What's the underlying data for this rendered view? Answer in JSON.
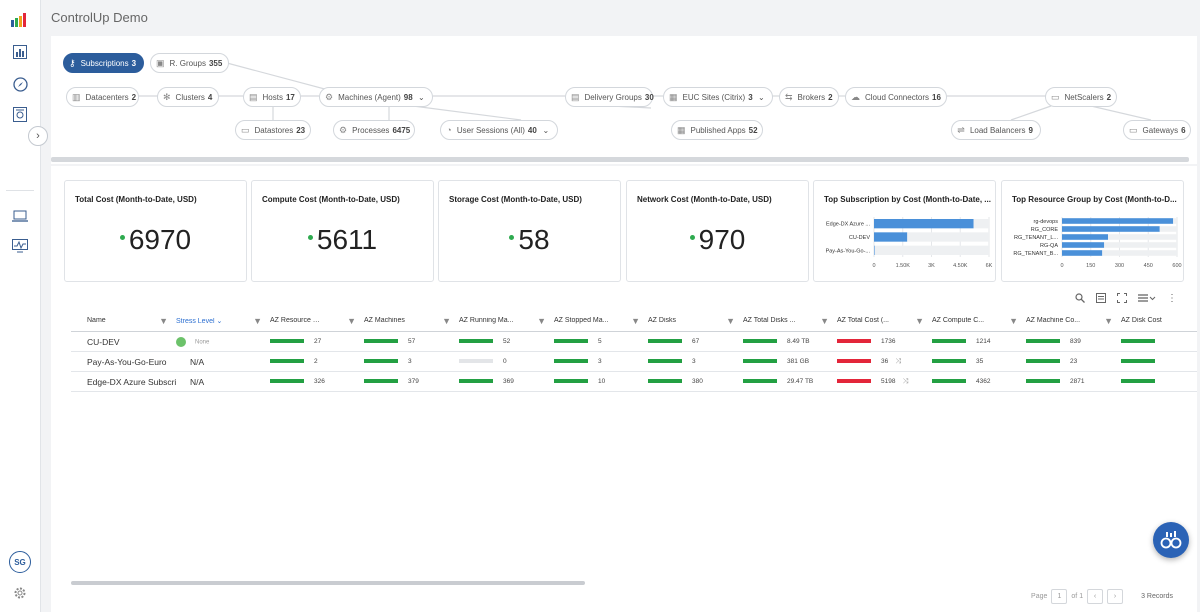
{
  "app": {
    "title": "ControlUp Demo",
    "avatar_initials": "SG"
  },
  "topology": {
    "nodes": [
      {
        "label": "Subscriptions",
        "count": "3",
        "icon": "key-icon",
        "active": true
      },
      {
        "label": "R. Groups",
        "count": "355",
        "icon": "cube-icon"
      },
      {
        "label": "Datacenters",
        "count": "2",
        "icon": "building-icon"
      },
      {
        "label": "Clusters",
        "count": "4",
        "icon": "cluster-icon"
      },
      {
        "label": "Hosts",
        "count": "17",
        "icon": "server-icon"
      },
      {
        "label": "Datastores",
        "count": "23",
        "icon": "datastore-icon"
      },
      {
        "label": "Machines (Agent)",
        "count": "98",
        "icon": "machine-icon"
      },
      {
        "label": "Processes",
        "count": "6475",
        "icon": "gears-icon"
      },
      {
        "label": "User Sessions (All)",
        "count": "40",
        "icon": "session-icon"
      },
      {
        "label": "Delivery Groups",
        "count": "30",
        "icon": "delivery-icon"
      },
      {
        "label": "EUC Sites (Citrix)",
        "count": "3",
        "icon": "site-icon"
      },
      {
        "label": "Published Apps",
        "count": "52",
        "icon": "apps-icon"
      },
      {
        "label": "Brokers",
        "count": "2",
        "icon": "broker-icon"
      },
      {
        "label": "Cloud Connectors",
        "count": "16",
        "icon": "cloud-icon"
      },
      {
        "label": "NetScalers",
        "count": "2",
        "icon": "netscaler-icon"
      },
      {
        "label": "Load Balancers",
        "count": "9",
        "icon": "balancer-icon"
      },
      {
        "label": "Gateways",
        "count": "6",
        "icon": "gateway-icon"
      }
    ]
  },
  "cards": [
    {
      "title": "Total Cost (Month-to-Date, USD)",
      "value": "6970"
    },
    {
      "title": "Compute Cost (Month-to-Date, USD)",
      "value": "5611"
    },
    {
      "title": "Storage Cost (Month-to-Date, USD)",
      "value": "58"
    },
    {
      "title": "Network Cost (Month-to-Date, USD)",
      "value": "970"
    },
    {
      "title": "Top Subscription by Cost (Month-to-Date, ..."
    },
    {
      "title": "Top Resource Group by Cost (Month-to-D..."
    }
  ],
  "chart_data": [
    {
      "type": "bar",
      "orientation": "horizontal",
      "title": "Top Subscription by Cost (Month-to-Date, ...",
      "categories": [
        "Edge-DX Azure ...",
        "CU-DEV",
        "Pay-As-You-Go-..."
      ],
      "values": [
        5198,
        1736,
        36
      ],
      "xlim": [
        0,
        6000
      ],
      "x_ticks": [
        "0",
        "1.50K",
        "3K",
        "4.50K",
        "6K"
      ],
      "color": "#4a90d9"
    },
    {
      "type": "bar",
      "orientation": "horizontal",
      "title": "Top Resource Group by Cost (Month-to-D...",
      "categories": [
        "rg-devops",
        "RG_CORE",
        "RG_TENANT_L...",
        "RG-QA",
        "RG_TENANT_B..."
      ],
      "values": [
        580,
        510,
        240,
        220,
        210
      ],
      "xlim": [
        0,
        600
      ],
      "x_ticks": [
        "0",
        "150",
        "300",
        "450",
        "600"
      ],
      "color": "#4a90d9"
    }
  ],
  "table": {
    "columns": [
      "Name",
      "Stress Level",
      "AZ Resource G...",
      "AZ Machines",
      "AZ Running Ma...",
      "AZ Stopped Ma...",
      "AZ Disks",
      "AZ Total Disks ...",
      "AZ Total Cost (...",
      "AZ Compute C...",
      "AZ Machine Co...",
      "AZ Disk Cost"
    ],
    "rows": [
      {
        "name": "CU-DEV",
        "stress": "None",
        "stress_dot": true,
        "cells": [
          [
            "27",
            "g"
          ],
          [
            "57",
            "g"
          ],
          [
            "52",
            "g"
          ],
          [
            "5",
            "g"
          ],
          [
            "67",
            "g"
          ],
          [
            "8.49 TB",
            "g"
          ],
          [
            "1736",
            "r"
          ],
          [
            "1214",
            "g"
          ],
          [
            "839",
            "g"
          ],
          [
            "",
            "g"
          ]
        ],
        "shuffle": false
      },
      {
        "name": "Pay-As-You-Go-Euro",
        "stress": "N/A",
        "stress_dot": false,
        "cells": [
          [
            "2",
            "g"
          ],
          [
            "3",
            "g"
          ],
          [
            "0",
            "e"
          ],
          [
            "3",
            "g"
          ],
          [
            "3",
            "g"
          ],
          [
            "381 GB",
            "g"
          ],
          [
            "36",
            "r"
          ],
          [
            "35",
            "g"
          ],
          [
            "23",
            "g"
          ],
          [
            "",
            "g"
          ]
        ],
        "shuffle": true
      },
      {
        "name": "Edge-DX Azure Subscriptio",
        "stress": "N/A",
        "stress_dot": false,
        "cells": [
          [
            "326",
            "g"
          ],
          [
            "379",
            "g"
          ],
          [
            "369",
            "g"
          ],
          [
            "10",
            "g"
          ],
          [
            "380",
            "g"
          ],
          [
            "29.47 TB",
            "g"
          ],
          [
            "5198",
            "r"
          ],
          [
            "4362",
            "g"
          ],
          [
            "2871",
            "g"
          ],
          [
            "",
            "g"
          ]
        ],
        "shuffle": true
      }
    ]
  },
  "pager": {
    "page_label": "Page",
    "page": "1",
    "of_label": "of 1",
    "records": "3 Records"
  }
}
